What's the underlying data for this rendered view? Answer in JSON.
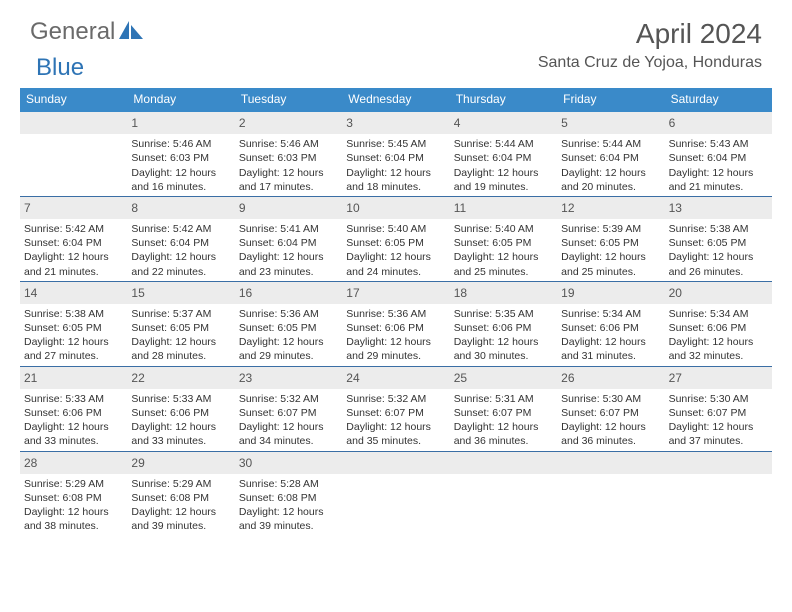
{
  "logo": {
    "general": "General",
    "blue": "Blue"
  },
  "title": "April 2024",
  "location": "Santa Cruz de Yojoa, Honduras",
  "colors": {
    "header_bar": "#3a8ac9",
    "header_text": "#ffffff",
    "daynum_bg": "#ececec",
    "week_border": "#3a6ea5",
    "body_text": "#333333",
    "logo_grey": "#6a6a6a",
    "logo_blue": "#2e74b5"
  },
  "weekdays": [
    "Sunday",
    "Monday",
    "Tuesday",
    "Wednesday",
    "Thursday",
    "Friday",
    "Saturday"
  ],
  "weeks": [
    [
      {
        "num": "",
        "sr": "",
        "ss": "",
        "dl1": "",
        "dl2": ""
      },
      {
        "num": "1",
        "sr": "Sunrise: 5:46 AM",
        "ss": "Sunset: 6:03 PM",
        "dl1": "Daylight: 12 hours",
        "dl2": "and 16 minutes."
      },
      {
        "num": "2",
        "sr": "Sunrise: 5:46 AM",
        "ss": "Sunset: 6:03 PM",
        "dl1": "Daylight: 12 hours",
        "dl2": "and 17 minutes."
      },
      {
        "num": "3",
        "sr": "Sunrise: 5:45 AM",
        "ss": "Sunset: 6:04 PM",
        "dl1": "Daylight: 12 hours",
        "dl2": "and 18 minutes."
      },
      {
        "num": "4",
        "sr": "Sunrise: 5:44 AM",
        "ss": "Sunset: 6:04 PM",
        "dl1": "Daylight: 12 hours",
        "dl2": "and 19 minutes."
      },
      {
        "num": "5",
        "sr": "Sunrise: 5:44 AM",
        "ss": "Sunset: 6:04 PM",
        "dl1": "Daylight: 12 hours",
        "dl2": "and 20 minutes."
      },
      {
        "num": "6",
        "sr": "Sunrise: 5:43 AM",
        "ss": "Sunset: 6:04 PM",
        "dl1": "Daylight: 12 hours",
        "dl2": "and 21 minutes."
      }
    ],
    [
      {
        "num": "7",
        "sr": "Sunrise: 5:42 AM",
        "ss": "Sunset: 6:04 PM",
        "dl1": "Daylight: 12 hours",
        "dl2": "and 21 minutes."
      },
      {
        "num": "8",
        "sr": "Sunrise: 5:42 AM",
        "ss": "Sunset: 6:04 PM",
        "dl1": "Daylight: 12 hours",
        "dl2": "and 22 minutes."
      },
      {
        "num": "9",
        "sr": "Sunrise: 5:41 AM",
        "ss": "Sunset: 6:04 PM",
        "dl1": "Daylight: 12 hours",
        "dl2": "and 23 minutes."
      },
      {
        "num": "10",
        "sr": "Sunrise: 5:40 AM",
        "ss": "Sunset: 6:05 PM",
        "dl1": "Daylight: 12 hours",
        "dl2": "and 24 minutes."
      },
      {
        "num": "11",
        "sr": "Sunrise: 5:40 AM",
        "ss": "Sunset: 6:05 PM",
        "dl1": "Daylight: 12 hours",
        "dl2": "and 25 minutes."
      },
      {
        "num": "12",
        "sr": "Sunrise: 5:39 AM",
        "ss": "Sunset: 6:05 PM",
        "dl1": "Daylight: 12 hours",
        "dl2": "and 25 minutes."
      },
      {
        "num": "13",
        "sr": "Sunrise: 5:38 AM",
        "ss": "Sunset: 6:05 PM",
        "dl1": "Daylight: 12 hours",
        "dl2": "and 26 minutes."
      }
    ],
    [
      {
        "num": "14",
        "sr": "Sunrise: 5:38 AM",
        "ss": "Sunset: 6:05 PM",
        "dl1": "Daylight: 12 hours",
        "dl2": "and 27 minutes."
      },
      {
        "num": "15",
        "sr": "Sunrise: 5:37 AM",
        "ss": "Sunset: 6:05 PM",
        "dl1": "Daylight: 12 hours",
        "dl2": "and 28 minutes."
      },
      {
        "num": "16",
        "sr": "Sunrise: 5:36 AM",
        "ss": "Sunset: 6:05 PM",
        "dl1": "Daylight: 12 hours",
        "dl2": "and 29 minutes."
      },
      {
        "num": "17",
        "sr": "Sunrise: 5:36 AM",
        "ss": "Sunset: 6:06 PM",
        "dl1": "Daylight: 12 hours",
        "dl2": "and 29 minutes."
      },
      {
        "num": "18",
        "sr": "Sunrise: 5:35 AM",
        "ss": "Sunset: 6:06 PM",
        "dl1": "Daylight: 12 hours",
        "dl2": "and 30 minutes."
      },
      {
        "num": "19",
        "sr": "Sunrise: 5:34 AM",
        "ss": "Sunset: 6:06 PM",
        "dl1": "Daylight: 12 hours",
        "dl2": "and 31 minutes."
      },
      {
        "num": "20",
        "sr": "Sunrise: 5:34 AM",
        "ss": "Sunset: 6:06 PM",
        "dl1": "Daylight: 12 hours",
        "dl2": "and 32 minutes."
      }
    ],
    [
      {
        "num": "21",
        "sr": "Sunrise: 5:33 AM",
        "ss": "Sunset: 6:06 PM",
        "dl1": "Daylight: 12 hours",
        "dl2": "and 33 minutes."
      },
      {
        "num": "22",
        "sr": "Sunrise: 5:33 AM",
        "ss": "Sunset: 6:06 PM",
        "dl1": "Daylight: 12 hours",
        "dl2": "and 33 minutes."
      },
      {
        "num": "23",
        "sr": "Sunrise: 5:32 AM",
        "ss": "Sunset: 6:07 PM",
        "dl1": "Daylight: 12 hours",
        "dl2": "and 34 minutes."
      },
      {
        "num": "24",
        "sr": "Sunrise: 5:32 AM",
        "ss": "Sunset: 6:07 PM",
        "dl1": "Daylight: 12 hours",
        "dl2": "and 35 minutes."
      },
      {
        "num": "25",
        "sr": "Sunrise: 5:31 AM",
        "ss": "Sunset: 6:07 PM",
        "dl1": "Daylight: 12 hours",
        "dl2": "and 36 minutes."
      },
      {
        "num": "26",
        "sr": "Sunrise: 5:30 AM",
        "ss": "Sunset: 6:07 PM",
        "dl1": "Daylight: 12 hours",
        "dl2": "and 36 minutes."
      },
      {
        "num": "27",
        "sr": "Sunrise: 5:30 AM",
        "ss": "Sunset: 6:07 PM",
        "dl1": "Daylight: 12 hours",
        "dl2": "and 37 minutes."
      }
    ],
    [
      {
        "num": "28",
        "sr": "Sunrise: 5:29 AM",
        "ss": "Sunset: 6:08 PM",
        "dl1": "Daylight: 12 hours",
        "dl2": "and 38 minutes."
      },
      {
        "num": "29",
        "sr": "Sunrise: 5:29 AM",
        "ss": "Sunset: 6:08 PM",
        "dl1": "Daylight: 12 hours",
        "dl2": "and 39 minutes."
      },
      {
        "num": "30",
        "sr": "Sunrise: 5:28 AM",
        "ss": "Sunset: 6:08 PM",
        "dl1": "Daylight: 12 hours",
        "dl2": "and 39 minutes."
      },
      {
        "num": "",
        "sr": "",
        "ss": "",
        "dl1": "",
        "dl2": ""
      },
      {
        "num": "",
        "sr": "",
        "ss": "",
        "dl1": "",
        "dl2": ""
      },
      {
        "num": "",
        "sr": "",
        "ss": "",
        "dl1": "",
        "dl2": ""
      },
      {
        "num": "",
        "sr": "",
        "ss": "",
        "dl1": "",
        "dl2": ""
      }
    ]
  ]
}
